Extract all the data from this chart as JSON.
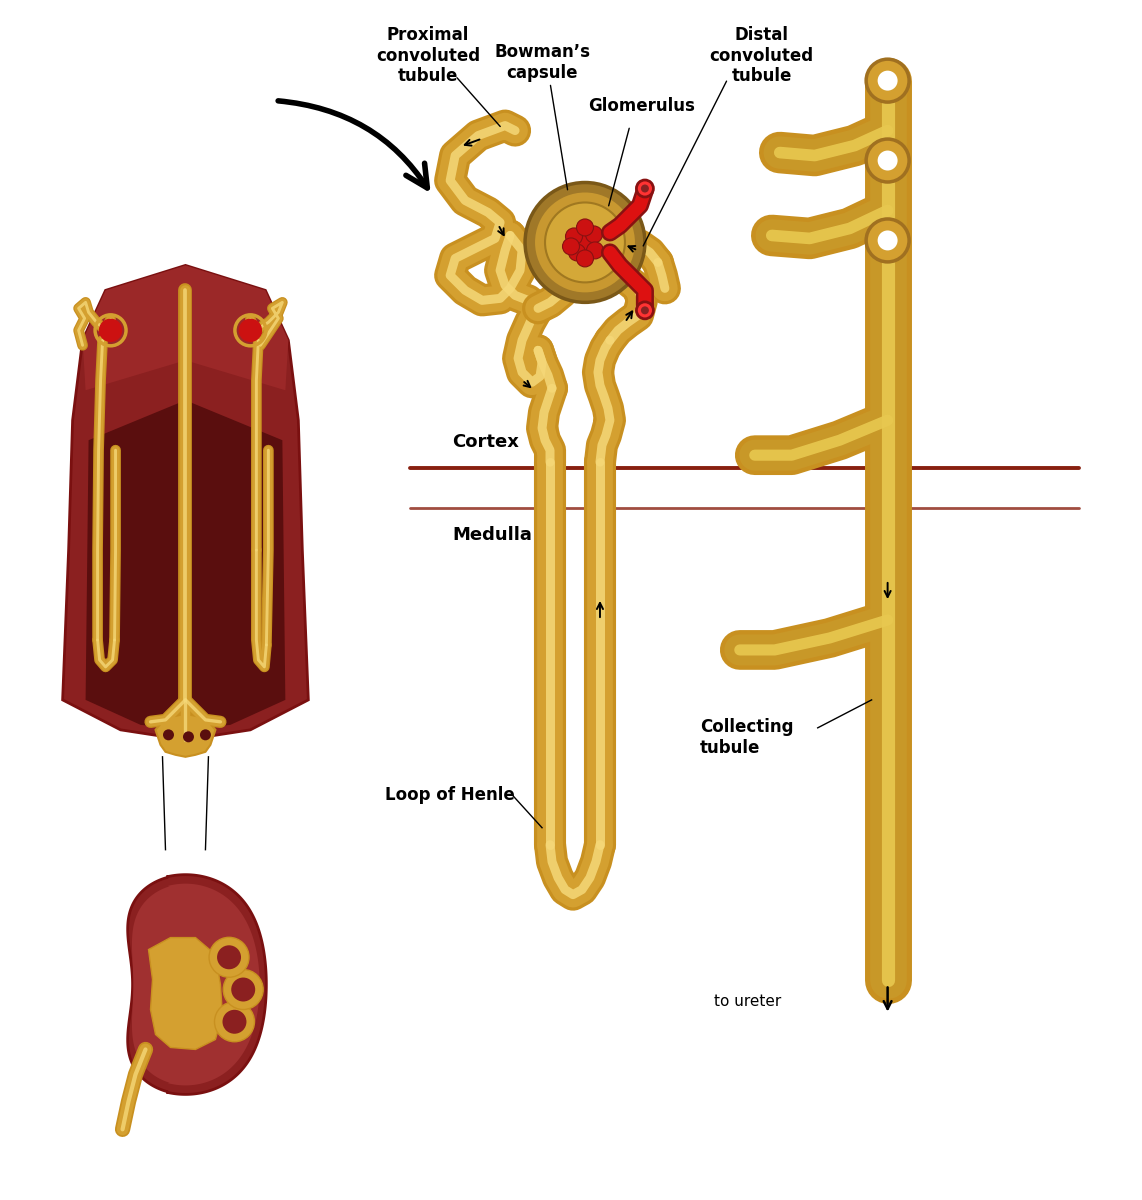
{
  "background_color": "#ffffff",
  "tubule_color": "#D4A030",
  "tubule_mid": "#C89020",
  "tubule_light": "#E8C060",
  "tubule_lumen": "#F5D878",
  "kidney_dark": "#7A1010",
  "kidney_mid": "#8B2020",
  "kidney_light": "#A03030",
  "cortex_lighter": "#9B2828",
  "medulla_dark": "#5A0E0E",
  "glomerulus_red": "#CC1111",
  "glomerulus_dark": "#881111",
  "glomerulus_mid": "#AA1111",
  "capsule_outer": "#C08830",
  "capsule_brown": "#8B6020",
  "vessel_red": "#DD1111",
  "vessel_bright": "#FF3333",
  "text_color": "#000000",
  "cortex_line": "#882010",
  "label_fontsize": 12,
  "labels": {
    "proximal": "Proximal\nconvoluted\ntubule",
    "bowman": "Bowman’s\ncapsule",
    "glomerulus": "Glomerulus",
    "distal": "Distal\nconvoluted\ntubule",
    "cortex": "Cortex",
    "medulla": "Medulla",
    "loop": "Loop of Henle",
    "collecting": "Collecting\ntubule",
    "ureter": "to ureter"
  }
}
